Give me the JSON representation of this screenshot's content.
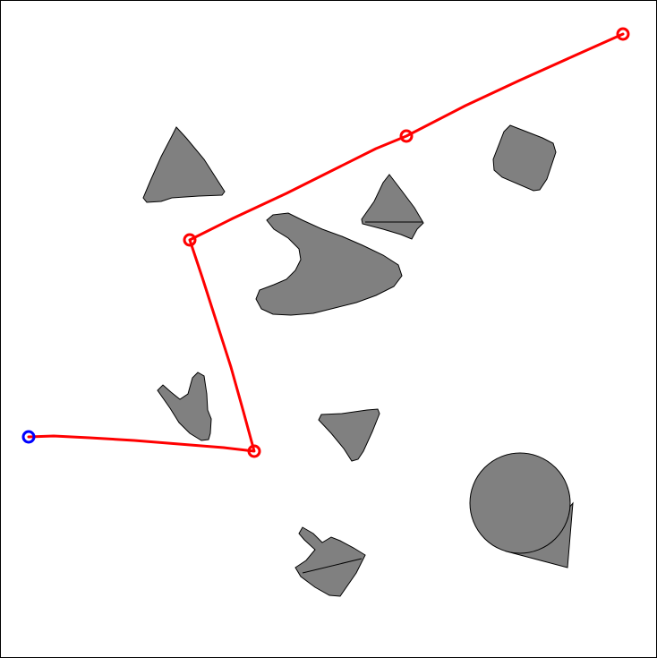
{
  "colors": {
    "background": "#ffffff",
    "border": "#000000",
    "obstacle_fill": "#808080",
    "obstacle_stroke": "#000000",
    "path": "#ff0000",
    "start_marker": "#0000ff",
    "waypoint_marker": "#ff0000"
  },
  "obstacles": [
    {
      "name": "obstacle-triangle-top-left",
      "shape": "triangle"
    },
    {
      "name": "obstacle-rounded-square-top-right",
      "shape": "rounded-square"
    },
    {
      "name": "obstacle-small-triangle-center",
      "shape": "triangle"
    },
    {
      "name": "obstacle-boomerang-center",
      "shape": "blob"
    },
    {
      "name": "obstacle-notched-left",
      "shape": "notched"
    },
    {
      "name": "obstacle-triangle-lower-center",
      "shape": "triangle"
    },
    {
      "name": "obstacle-circle-lower-right",
      "shape": "circle-with-wedge"
    },
    {
      "name": "obstacle-notched-bottom",
      "shape": "notched"
    }
  ],
  "path": {
    "start_icon": "blue-circle-icon",
    "waypoint_icon": "red-circle-icon"
  }
}
